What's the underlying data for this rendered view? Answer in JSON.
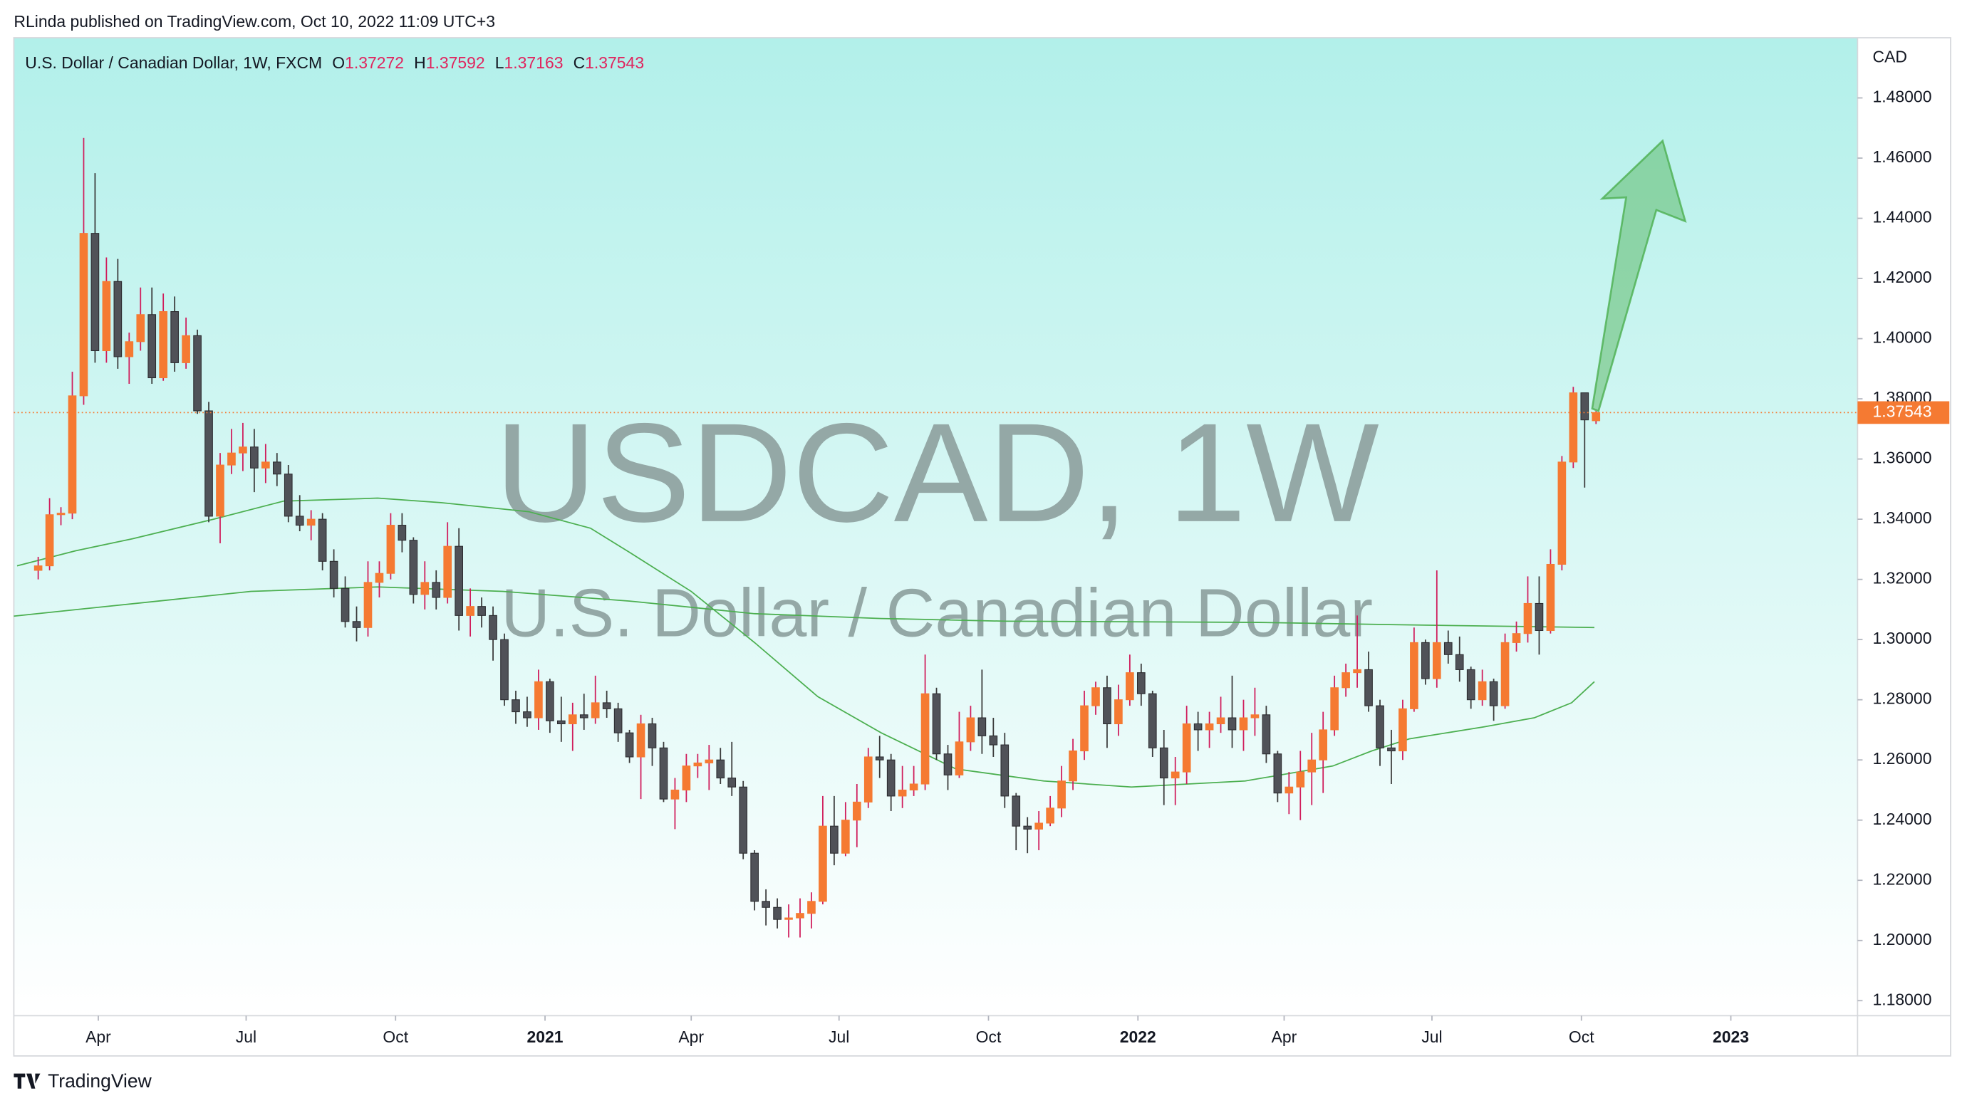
{
  "chart_data": {
    "type": "candlestick",
    "published": "RLinda published on TradingView.com, Oct 10, 2022 11:09 UTC+3",
    "legend_label": "U.S. Dollar / Canadian Dollar, 1W, FXCM",
    "ohlc_letters": [
      "O",
      "H",
      "L",
      "C"
    ],
    "watermark": [
      "USDCAD, 1W",
      "U.S. Dollar / Canadian Dollar"
    ],
    "currency": "CAD",
    "logo": "TradingView",
    "up_color": "#f57a32",
    "up_wick": "#d01c5b",
    "down_color": "#505258",
    "down_wick": "#3a3a3a",
    "x": [
      "2020-02-24",
      "2020-03-02",
      "2020-03-09",
      "2020-03-16",
      "2020-03-23",
      "2020-03-30",
      "2020-04-06",
      "2020-04-13",
      "2020-04-20",
      "2020-04-27",
      "2020-05-04",
      "2020-05-11",
      "2020-05-18",
      "2020-05-25",
      "2020-06-01",
      "2020-06-08",
      "2020-06-15",
      "2020-06-22",
      "2020-06-29",
      "2020-07-06",
      "2020-07-13",
      "2020-07-20",
      "2020-07-27",
      "2020-08-03",
      "2020-08-10",
      "2020-08-17",
      "2020-08-24",
      "2020-08-31",
      "2020-09-07",
      "2020-09-14",
      "2020-09-21",
      "2020-09-28",
      "2020-10-05",
      "2020-10-12",
      "2020-10-19",
      "2020-10-26",
      "2020-11-02",
      "2020-11-09",
      "2020-11-16",
      "2020-11-23",
      "2020-11-30",
      "2020-12-07",
      "2020-12-14",
      "2020-12-21",
      "2020-12-28",
      "2021-01-04",
      "2021-01-11",
      "2021-01-18",
      "2021-01-25",
      "2021-02-01",
      "2021-02-08",
      "2021-02-15",
      "2021-02-22",
      "2021-03-01",
      "2021-03-08",
      "2021-03-15",
      "2021-03-22",
      "2021-03-29",
      "2021-04-05",
      "2021-04-12",
      "2021-04-19",
      "2021-04-26",
      "2021-05-03",
      "2021-05-10",
      "2021-05-17",
      "2021-05-24",
      "2021-05-31",
      "2021-06-07",
      "2021-06-14",
      "2021-06-21",
      "2021-06-28",
      "2021-07-05",
      "2021-07-12",
      "2021-07-19",
      "2021-07-26",
      "2021-08-02",
      "2021-08-09",
      "2021-08-16",
      "2021-08-23",
      "2021-08-30",
      "2021-09-06",
      "2021-09-13",
      "2021-09-20",
      "2021-09-27",
      "2021-10-04",
      "2021-10-11",
      "2021-10-18",
      "2021-10-25",
      "2021-11-01",
      "2021-11-08",
      "2021-11-15",
      "2021-11-22",
      "2021-11-29",
      "2021-12-06",
      "2021-12-13",
      "2021-12-20",
      "2021-12-27",
      "2022-01-03",
      "2022-01-10",
      "2022-01-17",
      "2022-01-24",
      "2022-01-31",
      "2022-02-07",
      "2022-02-14",
      "2022-02-21",
      "2022-02-28",
      "2022-03-07",
      "2022-03-14",
      "2022-03-21",
      "2022-03-28",
      "2022-04-04",
      "2022-04-11",
      "2022-04-18",
      "2022-04-25",
      "2022-05-02",
      "2022-05-09",
      "2022-05-16",
      "2022-05-23",
      "2022-05-30",
      "2022-06-06",
      "2022-06-13",
      "2022-06-20",
      "2022-06-27",
      "2022-07-04",
      "2022-07-11",
      "2022-07-18",
      "2022-07-25",
      "2022-08-01",
      "2022-08-08",
      "2022-08-15",
      "2022-08-22",
      "2022-08-29",
      "2022-09-05",
      "2022-09-12",
      "2022-09-19",
      "2022-09-26",
      "2022-10-03",
      "2022-10-10"
    ],
    "open": [
      1.323,
      1.3245,
      1.3415,
      1.342,
      1.381,
      1.435,
      1.396,
      1.419,
      1.394,
      1.399,
      1.408,
      1.387,
      1.409,
      1.392,
      1.401,
      1.376,
      1.341,
      1.358,
      1.362,
      1.364,
      1.357,
      1.359,
      1.355,
      1.341,
      1.338,
      1.34,
      1.326,
      1.317,
      1.306,
      1.304,
      1.319,
      1.322,
      1.338,
      1.333,
      1.315,
      1.319,
      1.314,
      1.331,
      1.308,
      1.311,
      1.308,
      1.3,
      1.28,
      1.276,
      1.274,
      1.286,
      1.273,
      1.272,
      1.275,
      1.274,
      1.279,
      1.277,
      1.269,
      1.261,
      1.272,
      1.264,
      1.247,
      1.25,
      1.258,
      1.259,
      1.26,
      1.254,
      1.251,
      1.229,
      1.213,
      1.211,
      1.207,
      1.2075,
      1.209,
      1.213,
      1.238,
      1.229,
      1.24,
      1.246,
      1.261,
      1.26,
      1.248,
      1.25,
      1.252,
      1.282,
      1.262,
      1.255,
      1.266,
      1.274,
      1.268,
      1.265,
      1.248,
      1.238,
      1.237,
      1.239,
      1.244,
      1.253,
      1.263,
      1.278,
      1.284,
      1.272,
      1.28,
      1.289,
      1.282,
      1.264,
      1.254,
      1.256,
      1.272,
      1.27,
      1.272,
      1.274,
      1.27,
      1.274,
      1.275,
      1.262,
      1.249,
      1.251,
      1.256,
      1.26,
      1.27,
      1.284,
      1.289,
      1.29,
      1.278,
      1.264,
      1.263,
      1.277,
      1.299,
      1.287,
      1.299,
      1.295,
      1.29,
      1.28,
      1.286,
      1.278,
      1.299,
      1.302,
      1.312,
      1.303,
      1.325,
      1.359,
      1.382,
      1.37272
    ],
    "high": [
      1.3275,
      1.347,
      1.344,
      1.389,
      1.4667,
      1.455,
      1.427,
      1.4265,
      1.402,
      1.417,
      1.417,
      1.415,
      1.414,
      1.407,
      1.403,
      1.379,
      1.362,
      1.37,
      1.372,
      1.37,
      1.365,
      1.362,
      1.358,
      1.348,
      1.343,
      1.342,
      1.33,
      1.321,
      1.311,
      1.326,
      1.326,
      1.342,
      1.342,
      1.334,
      1.326,
      1.323,
      1.339,
      1.337,
      1.317,
      1.314,
      1.311,
      1.302,
      1.283,
      1.281,
      1.29,
      1.287,
      1.281,
      1.279,
      1.282,
      1.288,
      1.283,
      1.279,
      1.27,
      1.275,
      1.274,
      1.266,
      1.254,
      1.262,
      1.262,
      1.265,
      1.264,
      1.266,
      1.253,
      1.23,
      1.217,
      1.214,
      1.212,
      1.214,
      1.216,
      1.248,
      1.248,
      1.246,
      1.252,
      1.264,
      1.268,
      1.262,
      1.258,
      1.258,
      1.295,
      1.284,
      1.265,
      1.276,
      1.278,
      1.29,
      1.274,
      1.269,
      1.249,
      1.241,
      1.243,
      1.248,
      1.258,
      1.267,
      1.283,
      1.286,
      1.288,
      1.285,
      1.295,
      1.292,
      1.283,
      1.27,
      1.261,
      1.278,
      1.276,
      1.276,
      1.281,
      1.288,
      1.28,
      1.284,
      1.278,
      1.263,
      1.256,
      1.263,
      1.269,
      1.276,
      1.288,
      1.292,
      1.308,
      1.296,
      1.28,
      1.27,
      1.28,
      1.304,
      1.3,
      1.323,
      1.303,
      1.301,
      1.291,
      1.29,
      1.287,
      1.302,
      1.306,
      1.321,
      1.321,
      1.33,
      1.361,
      1.384,
      1.382,
      1.37592
    ],
    "low": [
      1.32,
      1.323,
      1.338,
      1.34,
      1.378,
      1.392,
      1.392,
      1.39,
      1.385,
      1.396,
      1.385,
      1.386,
      1.389,
      1.39,
      1.375,
      1.339,
      1.332,
      1.355,
      1.356,
      1.349,
      1.352,
      1.351,
      1.339,
      1.336,
      1.333,
      1.323,
      1.314,
      1.304,
      1.2994,
      1.301,
      1.314,
      1.32,
      1.329,
      1.312,
      1.31,
      1.31,
      1.312,
      1.303,
      1.301,
      1.304,
      1.293,
      1.278,
      1.272,
      1.271,
      1.27,
      1.269,
      1.266,
      1.263,
      1.27,
      1.272,
      1.274,
      1.266,
      1.259,
      1.247,
      1.258,
      1.246,
      1.237,
      1.246,
      1.254,
      1.25,
      1.252,
      1.248,
      1.227,
      1.21,
      1.205,
      1.204,
      1.201,
      1.201,
      1.204,
      1.212,
      1.225,
      1.228,
      1.231,
      1.244,
      1.254,
      1.243,
      1.244,
      1.248,
      1.25,
      1.26,
      1.25,
      1.254,
      1.263,
      1.262,
      1.261,
      1.244,
      1.23,
      1.229,
      1.23,
      1.238,
      1.241,
      1.25,
      1.26,
      1.275,
      1.264,
      1.268,
      1.278,
      1.278,
      1.261,
      1.245,
      1.245,
      1.252,
      1.263,
      1.264,
      1.269,
      1.264,
      1.263,
      1.268,
      1.259,
      1.246,
      1.242,
      1.24,
      1.245,
      1.249,
      1.268,
      1.281,
      1.284,
      1.276,
      1.258,
      1.252,
      1.26,
      1.276,
      1.285,
      1.284,
      1.292,
      1.286,
      1.277,
      1.278,
      1.273,
      1.277,
      1.296,
      1.299,
      1.295,
      1.302,
      1.323,
      1.357,
      1.3505,
      1.37163
    ],
    "close": [
      1.3245,
      1.3415,
      1.342,
      1.381,
      1.435,
      1.396,
      1.419,
      1.394,
      1.399,
      1.408,
      1.387,
      1.409,
      1.392,
      1.401,
      1.376,
      1.341,
      1.358,
      1.362,
      1.364,
      1.357,
      1.359,
      1.355,
      1.341,
      1.338,
      1.34,
      1.326,
      1.317,
      1.306,
      1.304,
      1.319,
      1.322,
      1.338,
      1.333,
      1.315,
      1.319,
      1.314,
      1.331,
      1.308,
      1.311,
      1.308,
      1.3,
      1.28,
      1.276,
      1.274,
      1.286,
      1.273,
      1.272,
      1.275,
      1.274,
      1.279,
      1.277,
      1.269,
      1.261,
      1.272,
      1.264,
      1.247,
      1.25,
      1.258,
      1.259,
      1.26,
      1.254,
      1.251,
      1.229,
      1.213,
      1.211,
      1.207,
      1.2075,
      1.209,
      1.213,
      1.238,
      1.229,
      1.24,
      1.246,
      1.261,
      1.26,
      1.248,
      1.25,
      1.252,
      1.282,
      1.262,
      1.255,
      1.266,
      1.274,
      1.268,
      1.265,
      1.248,
      1.238,
      1.237,
      1.239,
      1.244,
      1.253,
      1.263,
      1.278,
      1.284,
      1.272,
      1.28,
      1.289,
      1.282,
      1.264,
      1.254,
      1.256,
      1.272,
      1.27,
      1.272,
      1.274,
      1.27,
      1.274,
      1.275,
      1.262,
      1.249,
      1.251,
      1.256,
      1.26,
      1.27,
      1.284,
      1.289,
      1.29,
      1.278,
      1.264,
      1.263,
      1.277,
      1.299,
      1.287,
      1.299,
      1.295,
      1.29,
      1.28,
      1.286,
      1.278,
      1.299,
      1.302,
      1.312,
      1.303,
      1.325,
      1.359,
      1.382,
      1.373,
      1.37543
    ],
    "overlays": [
      {
        "color": "#4caf50",
        "x": [
          "2020-02-11",
          "2020-03-18",
          "2020-04-22",
          "2020-06-11",
          "2020-07-24",
          "2020-09-20",
          "2020-10-29",
          "2020-12-22",
          "2021-01-29",
          "2021-02-22",
          "2021-04-01",
          "2021-05-10",
          "2021-06-18",
          "2021-07-27",
          "2021-09-11",
          "2021-11-04",
          "2021-12-28",
          "2022-03-08",
          "2022-05-01",
          "2022-05-25",
          "2022-06-17",
          "2022-08-02",
          "2022-09-02",
          "2022-09-25",
          "2022-10-09"
        ],
        "values": [
          1.3245,
          1.3295,
          1.3335,
          1.34,
          1.346,
          1.347,
          1.3455,
          1.3425,
          1.337,
          1.329,
          1.316,
          1.299,
          1.281,
          1.269,
          1.257,
          1.253,
          1.251,
          1.253,
          1.258,
          1.263,
          1.267,
          1.271,
          1.274,
          1.279,
          1.286
        ]
      },
      {
        "color": "#4caf50",
        "x": [
          "2020-02-09",
          "2020-07-04",
          "2020-09-20",
          "2020-12-06",
          "2021-02-22",
          "2021-05-10",
          "2021-07-27",
          "2021-10-12",
          "2022-03-16",
          "2022-06-01",
          "2022-10-09"
        ],
        "values": [
          1.3078,
          1.316,
          1.3175,
          1.316,
          1.3128,
          1.3086,
          1.307,
          1.3061,
          1.3057,
          1.305,
          1.304
        ]
      }
    ],
    "xlim": [
      "2020-02-09",
      "2023-03-20"
    ],
    "xticks": [
      {
        "value": "2020-04-01",
        "label": "Apr"
      },
      {
        "value": "2020-07-01",
        "label": "Jul"
      },
      {
        "value": "2020-10-01",
        "label": "Oct"
      },
      {
        "value": "2021-01-01",
        "label": "2021"
      },
      {
        "value": "2021-04-01",
        "label": "Apr"
      },
      {
        "value": "2021-07-01",
        "label": "Jul"
      },
      {
        "value": "2021-10-01",
        "label": "Oct"
      },
      {
        "value": "2022-01-01",
        "label": "2022"
      },
      {
        "value": "2022-04-01",
        "label": "Apr"
      },
      {
        "value": "2022-07-01",
        "label": "Jul"
      },
      {
        "value": "2022-10-01",
        "label": "Oct"
      },
      {
        "value": "2023-01-01",
        "label": "2023"
      }
    ],
    "ylim": [
      1.175,
      1.5
    ],
    "yticks": [
      {
        "value": 1.18,
        "label": "1.18000"
      },
      {
        "value": 1.2,
        "label": "1.20000"
      },
      {
        "value": 1.22,
        "label": "1.22000"
      },
      {
        "value": 1.24,
        "label": "1.24000"
      },
      {
        "value": 1.26,
        "label": "1.26000"
      },
      {
        "value": 1.28,
        "label": "1.28000"
      },
      {
        "value": 1.3,
        "label": "1.30000"
      },
      {
        "value": 1.32,
        "label": "1.32000"
      },
      {
        "value": 1.34,
        "label": "1.34000"
      },
      {
        "value": 1.36,
        "label": "1.36000"
      },
      {
        "value": 1.38,
        "label": "1.38000"
      },
      {
        "value": 1.4,
        "label": "1.40000"
      },
      {
        "value": 1.42,
        "label": "1.42000"
      },
      {
        "value": 1.44,
        "label": "1.44000"
      },
      {
        "value": 1.46,
        "label": "1.46000"
      },
      {
        "value": 1.48,
        "label": "1.48000"
      }
    ],
    "grid": false
  }
}
